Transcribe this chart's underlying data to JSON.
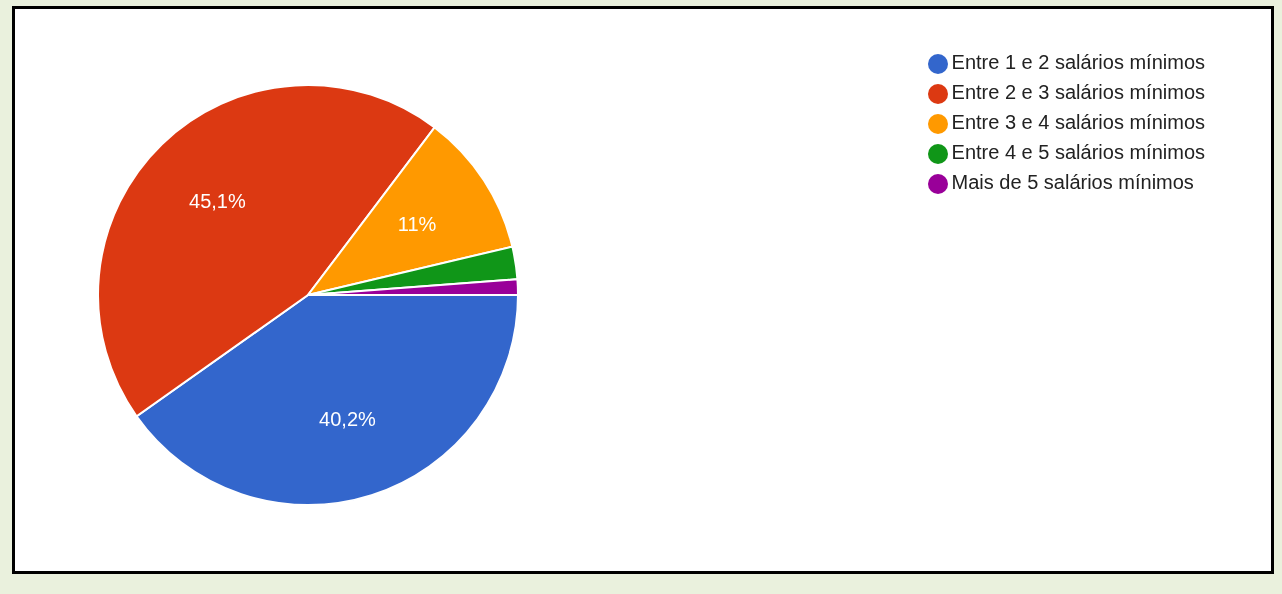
{
  "chart_data": {
    "type": "pie",
    "categories": [
      "Entre 1 e 2 salários mínimos",
      "Entre 2 e 3 salários mínimos",
      "Entre 3 e 4 salários mínimos",
      "Entre 4 e 5 salários mínimos",
      "Mais de 5 salários mínimos"
    ],
    "values": [
      40.2,
      45.1,
      11,
      2.5,
      1.2
    ],
    "colors": [
      "#3366cc",
      "#dc3912",
      "#ff9900",
      "#109618",
      "#990099"
    ],
    "value_labels": [
      "40,2%",
      "45,1%",
      "11%",
      null,
      null
    ],
    "legend": "top right"
  }
}
